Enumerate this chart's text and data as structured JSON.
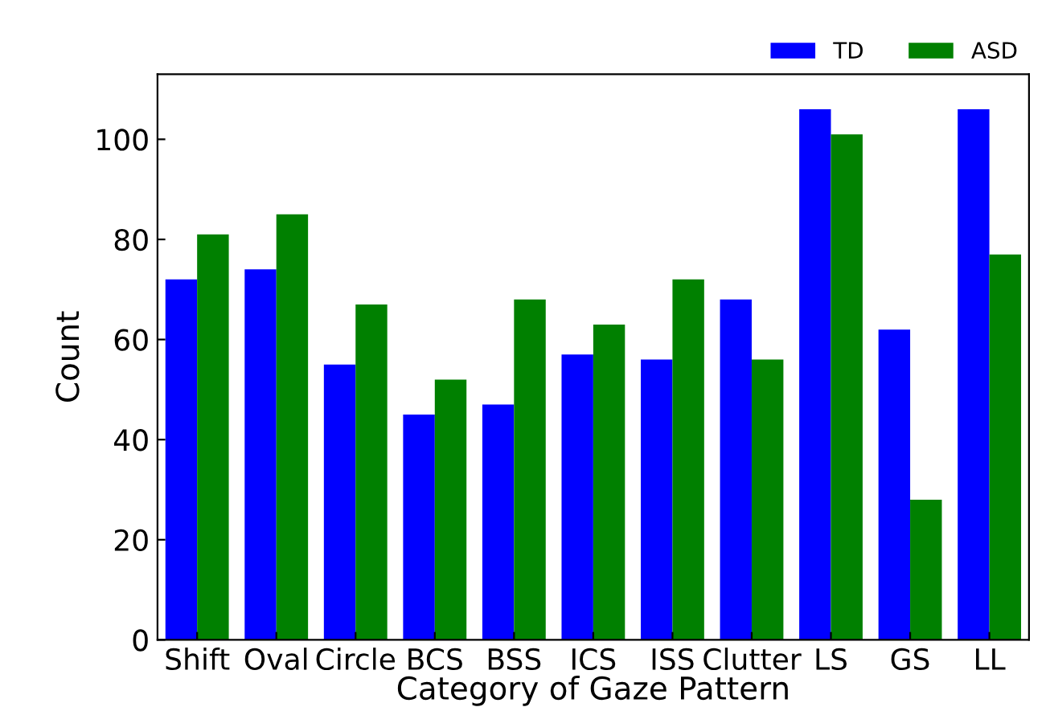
{
  "chart_data": {
    "type": "bar",
    "xlabel": "Category of Gaze Pattern",
    "ylabel": "Count",
    "categories": [
      "Shift",
      "Oval",
      "Circle",
      "BCS",
      "BSS",
      "ICS",
      "ISS",
      "Clutter",
      "LS",
      "GS",
      "LL"
    ],
    "series": [
      {
        "name": "TD",
        "color": "#0000ff",
        "values": [
          72,
          74,
          55,
          45,
          47,
          57,
          56,
          68,
          106,
          62,
          106
        ]
      },
      {
        "name": "ASD",
        "color": "#008000",
        "values": [
          81,
          85,
          67,
          52,
          68,
          63,
          72,
          56,
          101,
          28,
          77
        ]
      }
    ],
    "ylim": [
      0,
      113
    ],
    "yticks": [
      0,
      20,
      40,
      60,
      80,
      100
    ],
    "grid": false,
    "legend": "top right"
  }
}
